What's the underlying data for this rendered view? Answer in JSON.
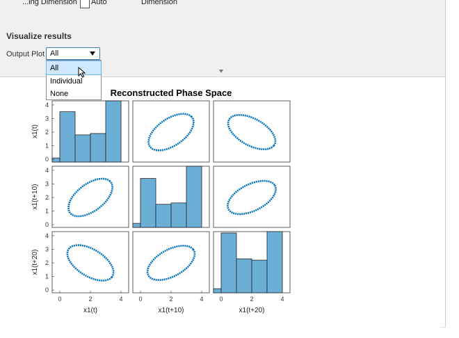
{
  "top_row": {
    "left_label": "...ing Dimension",
    "auto_label": "Auto",
    "right_label": "Dimension"
  },
  "section": {
    "title": "Visualize results"
  },
  "output_plot": {
    "label": "Output Plot",
    "selected": "All",
    "options": [
      "All",
      "Individual",
      "None"
    ]
  },
  "icons": [
    "chevron-down-icon",
    "mouse-cursor-icon",
    "split-arrow-icon"
  ],
  "colors": {
    "accent": "#0072bd",
    "bar": "#6baed6",
    "panel_bg": "#f0f0f0"
  },
  "chart_data": {
    "type": "scatter-matrix",
    "title": "Reconstructed Phase Space",
    "variables": [
      "x1(t)",
      "x1(t+10)",
      "x1(t+20)"
    ],
    "axis_ticks": [
      0,
      2,
      4
    ],
    "y_ticks": [
      0,
      1,
      2,
      3,
      4
    ],
    "xlim": [
      -0.5,
      4.5
    ],
    "ylim": [
      -0.2,
      4.3
    ],
    "histograms": [
      {
        "bins": [
          0.0,
          1.0,
          2.0,
          3.0,
          4.0
        ],
        "counts_scaled": [
          0.1,
          3.5,
          1.8,
          1.9,
          4.3
        ],
        "edges": [
          -0.5,
          0,
          1,
          2,
          3,
          4
        ]
      },
      {
        "bins": [
          0.0,
          1.0,
          2.0,
          3.0,
          4.0
        ],
        "counts_scaled": [
          0.1,
          3.4,
          1.5,
          1.6,
          4.3
        ],
        "edges": [
          -0.5,
          0,
          1,
          2,
          3,
          4
        ]
      },
      {
        "bins": [
          0.0,
          1.0,
          2.0,
          3.0,
          4.0
        ],
        "counts_scaled": [
          0.1,
          4.2,
          2.3,
          2.2,
          4.5
        ],
        "edges": [
          -0.5,
          0,
          1,
          2,
          3,
          4
        ]
      }
    ]
  }
}
